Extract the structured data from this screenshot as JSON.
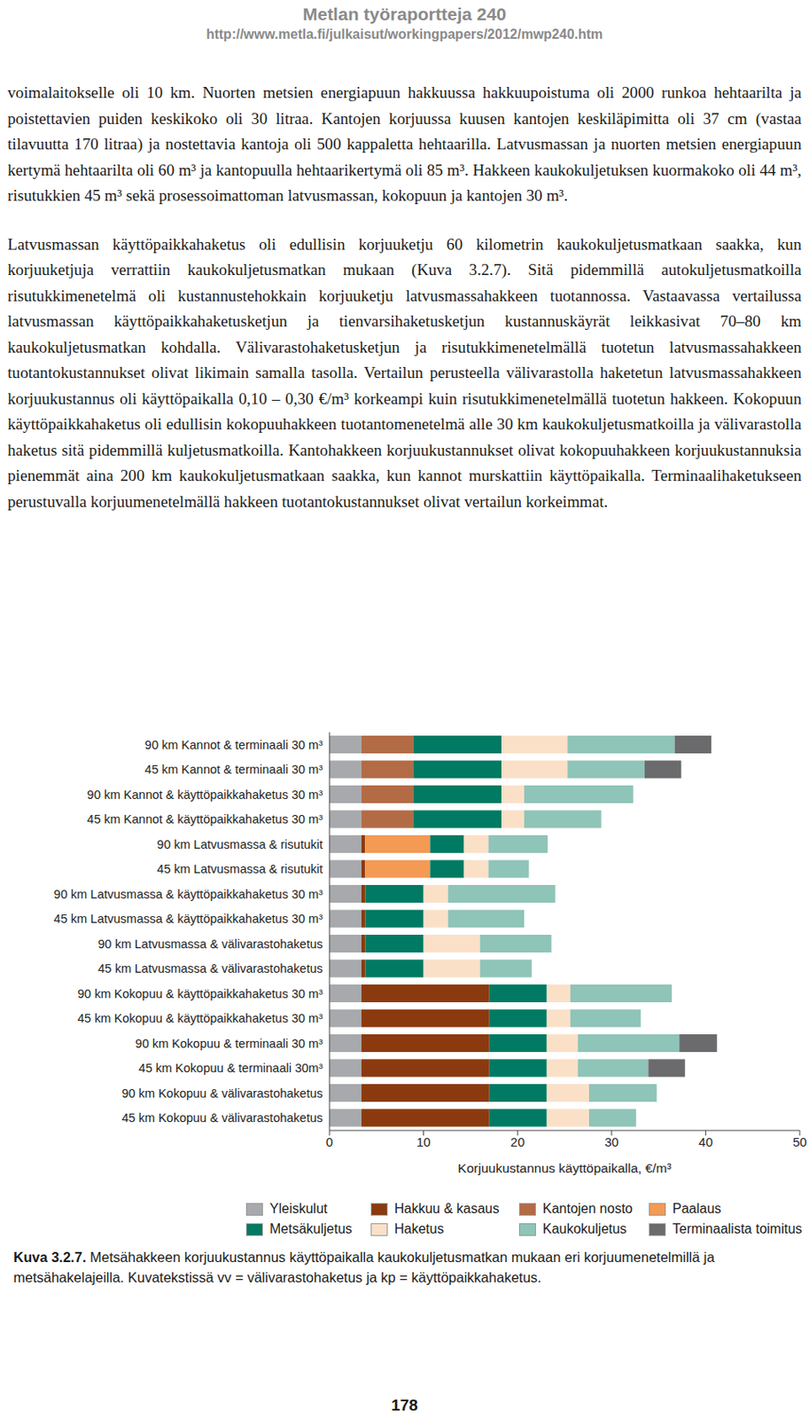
{
  "header": {
    "title": "Metlan työraportteja 240",
    "url": "http://www.metla.fi/julkaisut/workingpapers/2012/mwp240.htm"
  },
  "paragraphs": [
    "voimalaitokselle oli 10 km. Nuorten metsien energiapuun hakkuussa hakkuupoistuma oli 2000 runkoa hehtaarilta ja poistettavien puiden keskikoko oli 30 litraa. Kantojen korjuussa kuusen kantojen keskiläpimitta oli 37 cm (vastaa tilavuutta 170 litraa) ja nostettavia kantoja oli 500 kappaletta hehtaarilla. Latvusmassan ja nuorten metsien energiapuun kertymä hehtaarilta oli 60 m³ ja kantopuulla hehtaarikertymä oli 85 m³. Hakkeen kaukokuljetuksen kuormakoko oli 44 m³, risutukkien 45 m³ sekä prosessoimattoman latvusmassan, kokopuun ja kantojen 30 m³.",
    "Latvusmassan käyttöpaikkahaketus oli edullisin korjuuketju 60 kilometrin kaukokuljetusmatkaan saakka, kun korjuuketjuja verrattiin kaukokuljetusmatkan mukaan (Kuva 3.2.7). Sitä pidemmillä autokuljetusmatkoilla risutukkimenetelmä oli kustannustehokkain korjuuketju latvusmassahakkeen tuotannossa. Vastaavassa vertailussa latvusmassan käyttöpaikkahaketusketjun ja tienvarsihaketusketjun kustannuskäyrät leikkasivat 70–80 km kaukokuljetusmatkan kohdalla. Välivarastohaketusketjun ja risutukkimenetelmällä tuotetun latvusmassahakkeen tuotantokustannukset olivat likimain samalla tasolla. Vertailun perusteella välivarastolla haketetun latvusmassahakkeen korjuukustannus oli käyttöpaikalla 0,10 – 0,30 €/m³ korkeampi kuin risutukkimenetelmällä tuotetun hakkeen. Kokopuun käyttöpaikkahaketus oli edullisin kokopuuhakkeen tuotantomenetelmä alle 30 km kaukokuljetusmatkoilla ja välivarastolla haketus sitä pidemmillä kuljetusmatkoilla. Kantohakkeen korjuukustannukset olivat kokopuuhakkeen korjuukustannuksia pienemmät aina 200 km kaukokuljetusmatkaan saakka, kun kannot murskattiin käyttöpaikalla. Terminaalihaketukseen perustuvalla korjuumenetelmällä hakkeen tuotantokustannukset olivat vertailun korkeimmat."
  ],
  "chart_data": {
    "type": "bar",
    "orientation": "horizontal",
    "stacked": true,
    "legend": "bottom",
    "x_label": "Korjuukustannus käyttöpaikalla, €/m³",
    "xlim": [
      0,
      50
    ],
    "xticks": [
      0,
      10,
      20,
      30,
      40,
      50
    ],
    "categories": [
      "90 km Kannot & terminaali 30 m³",
      "45 km Kannot & terminaali 30 m³",
      "90 km Kannot & käyttöpaikkahaketus 30 m³",
      "45 km Kannot & käyttöpaikkahaketus 30 m³",
      "90 km Latvusmassa & risutukit",
      "45 km Latvusmassa & risutukit",
      "90 km Latvusmassa & käyttöpaikkahaketus 30 m³",
      "45 km Latvusmassa & käyttöpaikkahaketus 30 m³",
      "90 km Latvusmassa & välivarastohaketus",
      "45 km Latvusmassa & välivarastohaketus",
      "90 km Kokopuu & käyttöpaikkahaketus 30 m³",
      "45 km Kokopuu & käyttöpaikkahaketus 30 m³",
      "90 km Kokopuu & terminaali 30 m³",
      "45 km Kokopuu & terminaali 30m³",
      "90 km Kokopuu & välivarastohaketus",
      "45 km Kokopuu & välivarastohaketus"
    ],
    "series": [
      {
        "name": "Yleiskulut",
        "color": "#a7a9ac",
        "values": [
          3.4,
          3.4,
          3.4,
          3.4,
          3.4,
          3.4,
          3.4,
          3.4,
          3.4,
          3.4,
          3.4,
          3.4,
          3.4,
          3.4,
          3.4,
          3.4
        ]
      },
      {
        "name": "Hakkuu & kasaus",
        "color": "#8b3a0f",
        "values": [
          null,
          null,
          null,
          null,
          0.4,
          0.4,
          0.4,
          0.4,
          0.4,
          0.4,
          13.6,
          13.6,
          13.6,
          13.6,
          13.6,
          13.6
        ]
      },
      {
        "name": "Kantojen nosto",
        "color": "#b36b45",
        "values": [
          5.5,
          5.5,
          5.5,
          5.5,
          null,
          null,
          null,
          null,
          null,
          null,
          null,
          null,
          null,
          null,
          null,
          null
        ]
      },
      {
        "name": "Paalaus",
        "color": "#f39a55",
        "values": [
          null,
          null,
          null,
          null,
          6.9,
          6.9,
          null,
          null,
          null,
          null,
          null,
          null,
          null,
          null,
          null,
          null
        ]
      },
      {
        "name": "Metsäkuljetus",
        "color": "#007a63",
        "values": [
          9.4,
          9.4,
          9.4,
          9.4,
          3.6,
          3.6,
          6.2,
          6.2,
          6.2,
          6.2,
          6.1,
          6.1,
          6.1,
          6.1,
          6.1,
          6.1
        ]
      },
      {
        "name": "Haketus",
        "color": "#fbe0c8",
        "values": [
          7.0,
          7.0,
          2.4,
          2.4,
          2.6,
          2.6,
          2.6,
          2.6,
          6.0,
          6.0,
          2.5,
          2.5,
          3.3,
          3.3,
          4.5,
          4.5
        ]
      },
      {
        "name": "Kaukokuljetus",
        "color": "#8fc4b8",
        "values": [
          11.4,
          8.2,
          11.6,
          8.2,
          6.3,
          4.3,
          11.4,
          8.1,
          7.6,
          5.5,
          10.8,
          7.5,
          10.8,
          7.5,
          7.2,
          5.0
        ]
      },
      {
        "name": "Terminaalista toimitus",
        "color": "#6b6b6d",
        "values": [
          3.9,
          3.9,
          null,
          null,
          null,
          null,
          null,
          null,
          null,
          null,
          null,
          null,
          4.0,
          3.9,
          null,
          null
        ]
      }
    ]
  },
  "caption": {
    "label": "Kuva 3.2.7.",
    "text": "Metsähakkeen korjuukustannus käyttöpaikalla kaukokuljetusmatkan mukaan eri korjuumenetelmillä ja metsähakelajeilla. Kuvatekstissä vv = välivarastohaketus ja kp = käyttöpaikkahaketus."
  },
  "page_number": "178"
}
